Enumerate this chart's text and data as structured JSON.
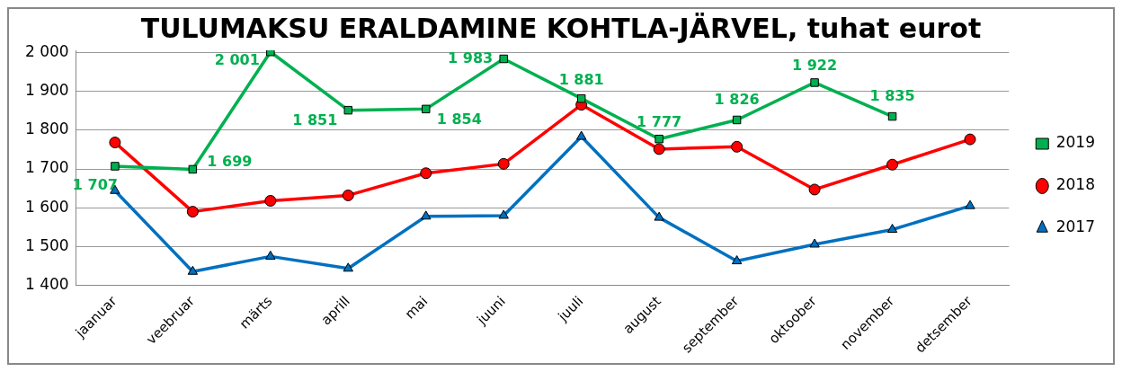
{
  "chart_data": {
    "type": "line",
    "title": "TULUMAKSU ERALDAMINE KOHTLA-JÄRVEL, tuhat eurot",
    "categories": [
      "jaanuar",
      "veebruar",
      "märts",
      "aprill",
      "mai",
      "juuni",
      "juuli",
      "august",
      "september",
      "oktoober",
      "november",
      "detsember"
    ],
    "series": [
      {
        "name": "2019",
        "color": "#00b050",
        "marker": "square",
        "values": [
          1707,
          1699,
          2001,
          1851,
          1854,
          1983,
          1881,
          1777,
          1826,
          1922,
          1835,
          null
        ],
        "value_labels": [
          "1 707",
          "1 699",
          "2 001",
          "1 851",
          "1 854",
          "1 983",
          "1 881",
          "1 777",
          "1 826",
          "1 922",
          "1 835",
          null
        ]
      },
      {
        "name": "2018",
        "color": "#ff0000",
        "marker": "circle",
        "values": [
          1768,
          1590,
          1618,
          1632,
          1689,
          1713,
          1865,
          1751,
          1757,
          1647,
          1711,
          1776
        ]
      },
      {
        "name": "2017",
        "color": "#0070c0",
        "marker": "triangle",
        "values": [
          1644,
          1436,
          1475,
          1444,
          1578,
          1580,
          1783,
          1575,
          1463,
          1506,
          1544,
          1605
        ]
      }
    ],
    "ylim": [
      1400,
      2005
    ],
    "yticks": [
      {
        "value": 1400,
        "label": "1 400"
      },
      {
        "value": 1500,
        "label": "1 500"
      },
      {
        "value": 1600,
        "label": "1 600"
      },
      {
        "value": 1700,
        "label": "1 700"
      },
      {
        "value": 1800,
        "label": "1 800"
      },
      {
        "value": 1900,
        "label": "1 900"
      },
      {
        "value": 2000,
        "label": "2 000"
      }
    ],
    "grid": "y",
    "legend": "right",
    "line_style": "solid"
  }
}
